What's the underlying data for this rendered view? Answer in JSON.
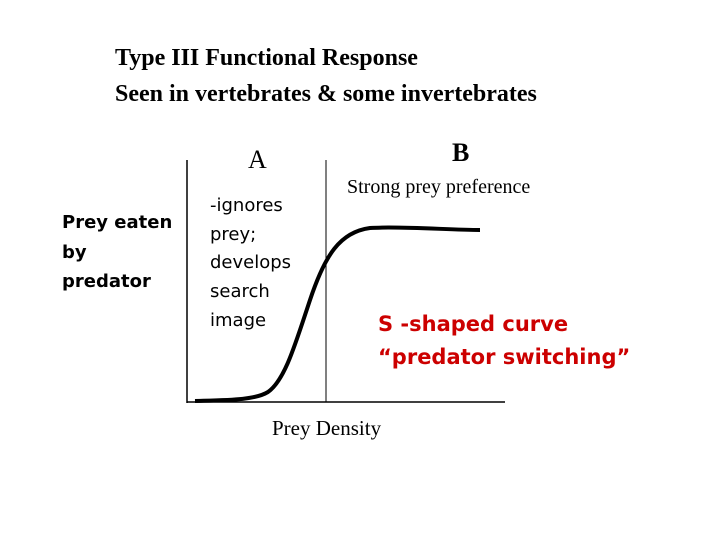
{
  "title": [
    "Type III  Functional Response",
    "Seen in vertebrates & some invertebrates"
  ],
  "y_axis_label": [
    "Prey eaten",
    "by",
    "predator"
  ],
  "regions": [
    {
      "label": "A",
      "note": [
        "-ignores",
        "prey;",
        "develops",
        "search",
        "image"
      ]
    },
    {
      "label": "B",
      "note": [
        "Strong prey preference"
      ]
    }
  ],
  "curve_label": [
    "S -shaped curve",
    "“predator switching”"
  ],
  "x_axis_label": "Prey Density"
}
